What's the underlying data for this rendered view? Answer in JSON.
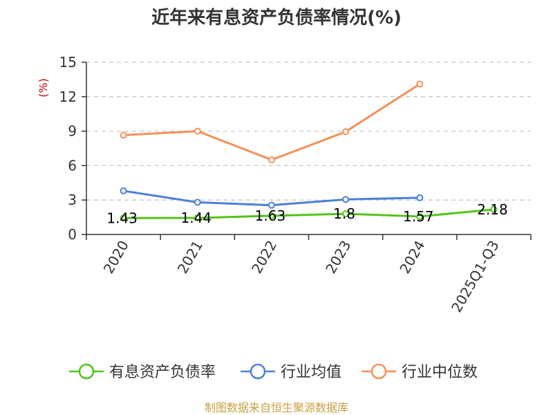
{
  "colors": {
    "axis": "#333333",
    "grid": "#c8c8c8",
    "source": "#c8a040",
    "unit": "#cc0000"
  },
  "chart_data": {
    "type": "line",
    "title": "近年来有息资产负债率情况(%)",
    "y_unit": "(%)",
    "categories": [
      "2020",
      "2021",
      "2022",
      "2023",
      "2024",
      "2025Q1-Q3"
    ],
    "ylim": [
      0,
      15
    ],
    "yticks": [
      0,
      3,
      6,
      9,
      12,
      15
    ],
    "grid": "horizontal-dashed",
    "legend_position": "bottom",
    "series": [
      {
        "name": "有息资产负债率",
        "color": "#52c41a",
        "values": [
          1.43,
          1.44,
          1.63,
          1.8,
          1.57,
          2.18
        ],
        "labels": [
          "1.43",
          "1.44",
          "1.63",
          "1.8",
          "1.57",
          "2.18"
        ]
      },
      {
        "name": "行业均值",
        "color": "#4a7fd9",
        "values": [
          3.8,
          2.8,
          2.55,
          3.05,
          3.2,
          null
        ]
      },
      {
        "name": "行业中位数",
        "color": "#f5905a",
        "values": [
          8.65,
          9.0,
          6.5,
          8.95,
          13.1,
          null
        ]
      }
    ],
    "source": "制图数据来自恒生聚源数据库"
  }
}
